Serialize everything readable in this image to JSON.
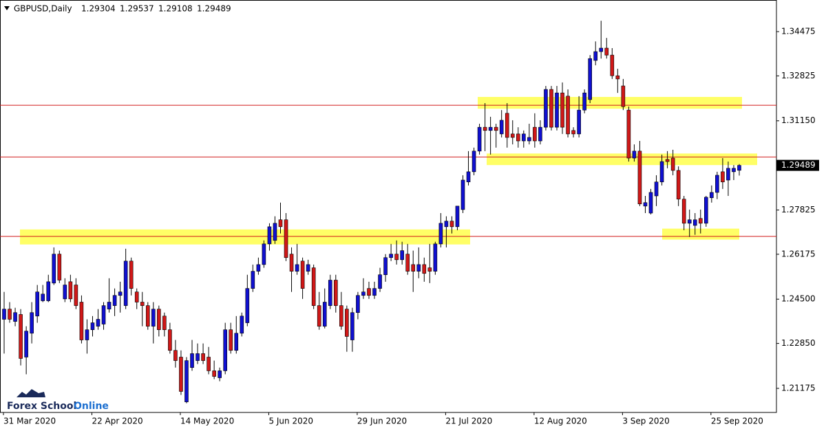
{
  "chart_data": {
    "type": "candlestick",
    "symbol": "GBPUSD,Daily",
    "watermark": [
      "Forex School",
      "Online"
    ],
    "up_color": "#1010d0",
    "down_color": "#d01818",
    "line_color": "#d01818",
    "zone_color": "#ffff66",
    "ylim": [
      1.20277,
      1.35654
    ],
    "yticks": [
      1.34475,
      1.32825,
      {
        "value": 1.3115,
        "label": "1.31150"
      },
      1.27825,
      1.26175,
      {
        "value": 1.245,
        "label": "1.24500"
      },
      {
        "value": 1.2285,
        "label": "1.22850"
      },
      1.21175
    ],
    "hlines": [
      1.3173,
      1.298,
      1.2684
    ],
    "zones": [
      [
        1.316,
        1.3204
      ],
      [
        1.295,
        1.2993
      ],
      [
        1.2654,
        1.271
      ],
      [
        1.2672,
        1.2713
      ]
    ],
    "categories": [
      "31 Mar 2020",
      null,
      null,
      null,
      null,
      null,
      null,
      null,
      null,
      null,
      null,
      null,
      null,
      null,
      null,
      null,
      "22 Apr 2020",
      null,
      null,
      null,
      null,
      null,
      null,
      null,
      null,
      null,
      null,
      null,
      null,
      null,
      null,
      null,
      "14 May 2020",
      null,
      null,
      null,
      null,
      null,
      null,
      null,
      null,
      null,
      null,
      null,
      null,
      null,
      null,
      null,
      "5 Jun 2020",
      null,
      null,
      null,
      null,
      null,
      null,
      null,
      null,
      null,
      null,
      null,
      null,
      null,
      null,
      null,
      "29 Jun 2020",
      null,
      null,
      null,
      null,
      null,
      null,
      null,
      null,
      null,
      null,
      null,
      null,
      null,
      null,
      null,
      "21 Jul 2020",
      null,
      null,
      null,
      null,
      null,
      null,
      null,
      null,
      null,
      null,
      null,
      null,
      null,
      null,
      null,
      "12 Aug 2020",
      null,
      null,
      null,
      null,
      null,
      null,
      null,
      null,
      null,
      null,
      null,
      null,
      null,
      null,
      null,
      "3 Sep 2020",
      null,
      null,
      null,
      null,
      null,
      null,
      null,
      null,
      null,
      null,
      null,
      null,
      null,
      null,
      null,
      "25 Sep 2020",
      null,
      null,
      null,
      null,
      null
    ],
    "ohlc": [
      [
        1.2375,
        1.2477,
        1.2247,
        1.2413
      ],
      [
        1.2413,
        1.2439,
        1.2362,
        1.2375
      ],
      [
        1.2367,
        1.2418,
        1.2349,
        1.24
      ],
      [
        1.2393,
        1.2413,
        1.2203,
        1.2229
      ],
      [
        1.2234,
        1.2349,
        1.217,
        1.2331
      ],
      [
        1.2323,
        1.2439,
        1.2285,
        1.24
      ],
      [
        1.2387,
        1.2503,
        1.2362,
        1.2477
      ],
      [
        1.2444,
        1.2503,
        1.2439,
        1.2469
      ],
      [
        1.2444,
        1.2541,
        1.2439,
        1.2515
      ],
      [
        1.251,
        1.2643,
        1.2503,
        1.2618
      ],
      [
        1.2618,
        1.2631,
        1.251,
        1.2521
      ],
      [
        1.2451,
        1.2528,
        1.2439,
        1.2503
      ],
      [
        1.2515,
        1.2541,
        1.2439,
        1.2451
      ],
      [
        1.2503,
        1.2528,
        1.2413,
        1.2426
      ],
      [
        1.2439,
        1.2464,
        1.2285,
        1.2298
      ],
      [
        1.2298,
        1.2375,
        1.2247,
        1.2336
      ],
      [
        1.2336,
        1.2387,
        1.2311,
        1.2362
      ],
      [
        1.2349,
        1.2413,
        1.2336,
        1.2375
      ],
      [
        1.2357,
        1.2439,
        1.2336,
        1.2426
      ],
      [
        1.2413,
        1.2528,
        1.24,
        1.2439
      ],
      [
        1.2426,
        1.249,
        1.2387,
        1.2464
      ],
      [
        1.2464,
        1.2515,
        1.24,
        1.2477
      ],
      [
        1.2426,
        1.2638,
        1.2413,
        1.2592
      ],
      [
        1.2592,
        1.2605,
        1.2464,
        1.249
      ],
      [
        1.2477,
        1.249,
        1.2413,
        1.2439
      ],
      [
        1.2439,
        1.2477,
        1.2349,
        1.2426
      ],
      [
        1.2426,
        1.2439,
        1.2336,
        1.2349
      ],
      [
        1.2349,
        1.2439,
        1.2285,
        1.2413
      ],
      [
        1.2413,
        1.2426,
        1.2311,
        1.2336
      ],
      [
        1.2387,
        1.24,
        1.2311,
        1.2336
      ],
      [
        1.2336,
        1.2362,
        1.2247,
        1.2259
      ],
      [
        1.2259,
        1.2298,
        1.2195,
        1.2221
      ],
      [
        1.2234,
        1.2259,
        1.2093,
        1.2106
      ],
      [
        1.2067,
        1.2234,
        1.2062,
        1.2221
      ],
      [
        1.2195,
        1.2298,
        1.2183,
        1.2247
      ],
      [
        1.2221,
        1.2285,
        1.2208,
        1.2247
      ],
      [
        1.2247,
        1.2285,
        1.2208,
        1.2221
      ],
      [
        1.2234,
        1.2272,
        1.217,
        1.2183
      ],
      [
        1.2183,
        1.2221,
        1.2152,
        1.2162
      ],
      [
        1.2157,
        1.2195,
        1.2144,
        1.2183
      ],
      [
        1.2183,
        1.2362,
        1.217,
        1.2336
      ],
      [
        1.2336,
        1.2362,
        1.2247,
        1.2259
      ],
      [
        1.2259,
        1.2387,
        1.2247,
        1.2323
      ],
      [
        1.2323,
        1.24,
        1.2311,
        1.2387
      ],
      [
        1.2362,
        1.2541,
        1.2349,
        1.249
      ],
      [
        1.249,
        1.2579,
        1.2477,
        1.2554
      ],
      [
        1.2554,
        1.2605,
        1.2541,
        1.2579
      ],
      [
        1.2579,
        1.2669,
        1.2567,
        1.2656
      ],
      [
        1.2656,
        1.2733,
        1.2631,
        1.272
      ],
      [
        1.2669,
        1.2759,
        1.2656,
        1.2733
      ],
      [
        1.2746,
        1.281,
        1.2695,
        1.272
      ],
      [
        1.2746,
        1.2771,
        1.2592,
        1.2605
      ],
      [
        1.2618,
        1.2643,
        1.2477,
        1.2554
      ],
      [
        1.2554,
        1.2656,
        1.2541,
        1.2579
      ],
      [
        1.2592,
        1.2605,
        1.2451,
        1.249
      ],
      [
        1.2554,
        1.2597,
        1.2541,
        1.2579
      ],
      [
        1.2567,
        1.2579,
        1.2413,
        1.2426
      ],
      [
        1.2426,
        1.2477,
        1.2336,
        1.2349
      ],
      [
        1.2349,
        1.249,
        1.2341,
        1.2439
      ],
      [
        1.2426,
        1.2541,
        1.2413,
        1.2521
      ],
      [
        1.2521,
        1.2541,
        1.24,
        1.2426
      ],
      [
        1.2426,
        1.2477,
        1.2336,
        1.2349
      ],
      [
        1.2413,
        1.2426,
        1.2254,
        1.2311
      ],
      [
        1.2298,
        1.2418,
        1.2254,
        1.24
      ],
      [
        1.24,
        1.2477,
        1.2375,
        1.2464
      ],
      [
        1.2464,
        1.2528,
        1.2451,
        1.2477
      ],
      [
        1.249,
        1.2515,
        1.2451,
        1.2464
      ],
      [
        1.2464,
        1.2515,
        1.2451,
        1.249
      ],
      [
        1.249,
        1.2567,
        1.2477,
        1.2541
      ],
      [
        1.2541,
        1.2618,
        1.2515,
        1.2605
      ],
      [
        1.2605,
        1.2656,
        1.2592,
        1.2618
      ],
      [
        1.2618,
        1.2669,
        1.2579,
        1.2597
      ],
      [
        1.2597,
        1.2664,
        1.2579,
        1.2631
      ],
      [
        1.2618,
        1.2656,
        1.2541,
        1.2554
      ],
      [
        1.2579,
        1.2631,
        1.2477,
        1.2554
      ],
      [
        1.2554,
        1.2643,
        1.2528,
        1.2579
      ],
      [
        1.2579,
        1.2605,
        1.2515,
        1.2546
      ],
      [
        1.2567,
        1.2656,
        1.251,
        1.2554
      ],
      [
        1.2554,
        1.2664,
        1.2541,
        1.2656
      ],
      [
        1.2656,
        1.2771,
        1.2643,
        1.2733
      ],
      [
        1.272,
        1.2759,
        1.2643,
        1.2741
      ],
      [
        1.2741,
        1.2759,
        1.2695,
        1.272
      ],
      [
        1.272,
        1.2797,
        1.2707,
        1.2797
      ],
      [
        1.2784,
        1.2912,
        1.2771,
        1.2894
      ],
      [
        1.2887,
        1.3002,
        1.2874,
        1.2925
      ],
      [
        1.2925,
        1.3015,
        1.2912,
        1.3002
      ],
      [
        1.3002,
        1.3104,
        1.2989,
        1.3091
      ],
      [
        1.3091,
        1.3181,
        1.3002,
        1.3079
      ],
      [
        1.3079,
        1.313,
        1.2989,
        1.3091
      ],
      [
        1.3091,
        1.3104,
        1.3015,
        1.3079
      ],
      [
        1.3066,
        1.3155,
        1.3053,
        1.3117
      ],
      [
        1.3143,
        1.3181,
        1.3015,
        1.3053
      ],
      [
        1.3066,
        1.3117,
        1.3027,
        1.3053
      ],
      [
        1.3066,
        1.3091,
        1.3015,
        1.304
      ],
      [
        1.304,
        1.3079,
        1.3015,
        1.3066
      ],
      [
        1.304,
        1.3104,
        1.3027,
        1.3053
      ],
      [
        1.3091,
        1.3143,
        1.3015,
        1.304
      ],
      [
        1.304,
        1.3117,
        1.3027,
        1.3091
      ],
      [
        1.3091,
        1.3245,
        1.3079,
        1.3232
      ],
      [
        1.3232,
        1.3245,
        1.3079,
        1.3091
      ],
      [
        1.3091,
        1.3245,
        1.3079,
        1.3219
      ],
      [
        1.3219,
        1.3258,
        1.3066,
        1.3091
      ],
      [
        1.3207,
        1.3232,
        1.3053,
        1.3066
      ],
      [
        1.3079,
        1.3091,
        1.3053,
        1.3066
      ],
      [
        1.3066,
        1.3207,
        1.3053,
        1.3155
      ],
      [
        1.3155,
        1.3232,
        1.3143,
        1.3219
      ],
      [
        1.3194,
        1.336,
        1.3181,
        1.3347
      ],
      [
        1.334,
        1.3411,
        1.3322,
        1.3373
      ],
      [
        1.3373,
        1.3488,
        1.3347,
        1.3386
      ],
      [
        1.3386,
        1.3424,
        1.3347,
        1.336
      ],
      [
        1.336,
        1.3386,
        1.3271,
        1.3283
      ],
      [
        1.3283,
        1.3309,
        1.3219,
        1.3271
      ],
      [
        1.3245,
        1.3271,
        1.3155,
        1.3168
      ],
      [
        1.3155,
        1.3168,
        1.2963,
        1.2976
      ],
      [
        1.2976,
        1.3027,
        1.2963,
        1.3002
      ],
      [
        1.3002,
        1.304,
        1.2797,
        1.2805
      ],
      [
        1.2797,
        1.2835,
        1.2771,
        1.281
      ],
      [
        1.2771,
        1.2861,
        1.2766,
        1.2848
      ],
      [
        1.2835,
        1.2912,
        1.2797,
        1.2887
      ],
      [
        1.2887,
        1.2989,
        1.2874,
        1.2963
      ],
      [
        1.2971,
        1.3002,
        1.2938,
        1.2963
      ],
      [
        1.2976,
        1.3007,
        1.2912,
        1.293
      ],
      [
        1.293,
        1.2945,
        1.2797,
        1.2823
      ],
      [
        1.2823,
        1.2835,
        1.2707,
        1.2733
      ],
      [
        1.2733,
        1.2784,
        1.2682,
        1.2746
      ],
      [
        1.2725,
        1.2771,
        1.269,
        1.2746
      ],
      [
        1.2751,
        1.2784,
        1.2695,
        1.2733
      ],
      [
        1.2733,
        1.2835,
        1.272,
        1.283
      ],
      [
        1.2828,
        1.2874,
        1.281,
        1.2848
      ],
      [
        1.2848,
        1.2925,
        1.2823,
        1.2912
      ],
      [
        1.2925,
        1.2976,
        1.2861,
        1.2887
      ],
      [
        1.2894,
        1.2963,
        1.2835,
        1.2938
      ],
      [
        1.2925,
        1.295,
        1.2894,
        1.2938
      ],
      [
        1.29304,
        1.29537,
        1.29108,
        1.29489
      ]
    ]
  }
}
